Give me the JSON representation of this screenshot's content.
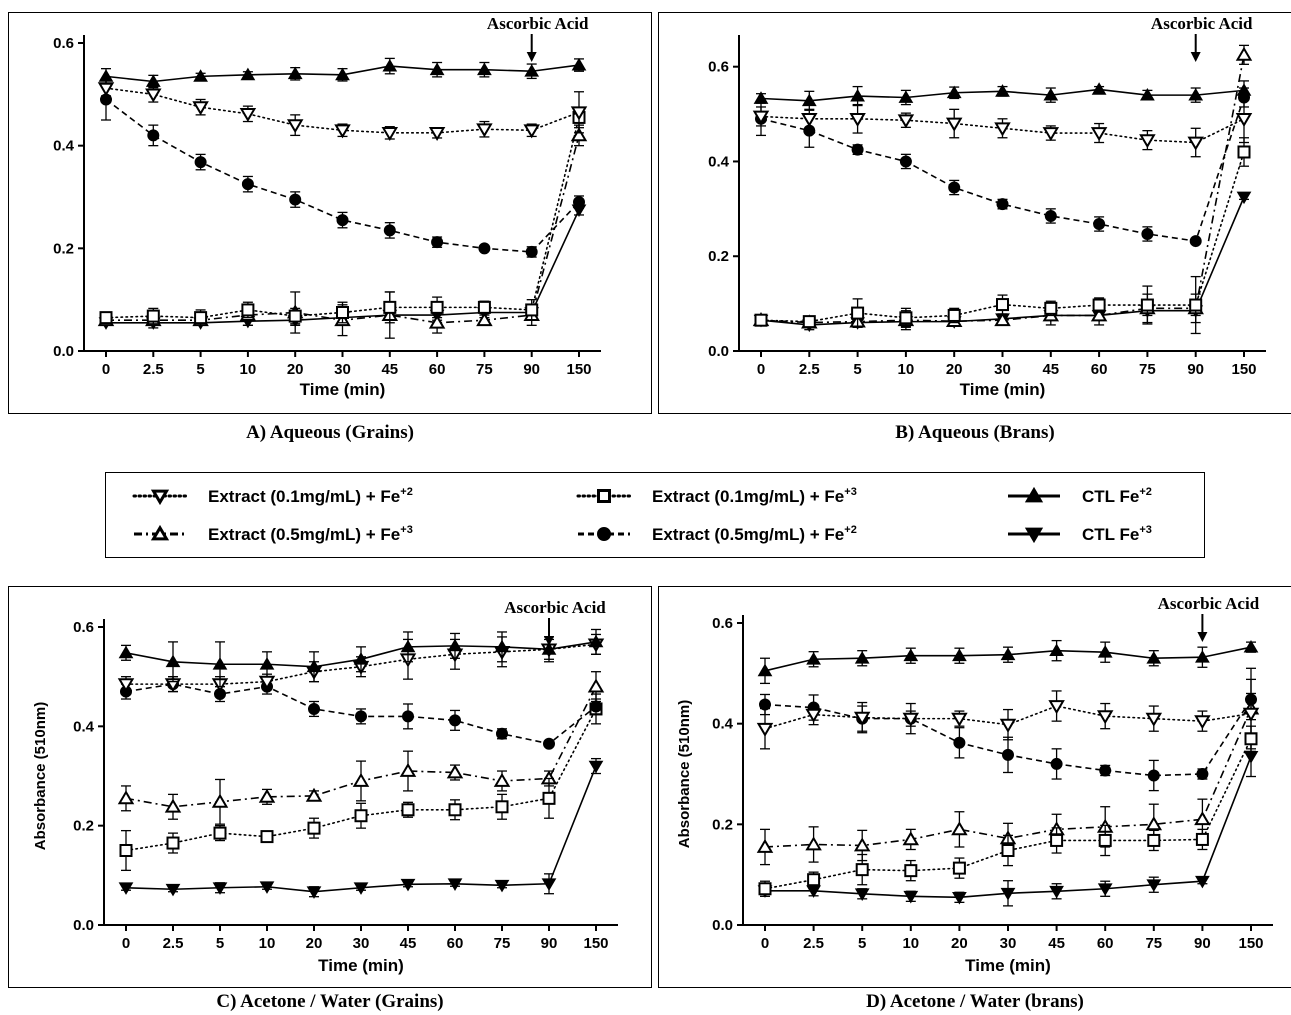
{
  "figure_text": {
    "arrow_label": "Ascorbic Acid",
    "x_axis_title": "Time (min)",
    "y_axis_title": "Absorbance (510nm)"
  },
  "legend": [
    {
      "key": "ext01_fe2",
      "text": "Extract (0.1mg/mL) + Fe",
      "sup": "+2",
      "symbol": "triangle-down-open",
      "line": "dotted"
    },
    {
      "key": "ext01_fe3",
      "text": "Extract (0.1mg/mL) + Fe",
      "sup": "+3",
      "symbol": "square-open",
      "line": "dotted"
    },
    {
      "key": "ctl_fe2",
      "text": "CTL Fe",
      "sup": "+2",
      "symbol": "triangle-up-filled",
      "line": "solid"
    },
    {
      "key": "ext05_fe3",
      "text": "Extract (0.5mg/mL) + Fe",
      "sup": "+3",
      "symbol": "triangle-up-open",
      "line": "dash-dot"
    },
    {
      "key": "ext05_fe2",
      "text": "Extract (0.5mg/mL) + Fe",
      "sup": "+2",
      "symbol": "circle-filled",
      "line": "dashed"
    },
    {
      "key": "ctl_fe3",
      "text": "CTL Fe",
      "sup": "+3",
      "symbol": "triangle-down-filled",
      "line": "solid"
    }
  ],
  "chart_data": [
    {
      "type": "line",
      "caption": "A) Aqueous (Grains)",
      "xlabel": "Time (min)",
      "ylabel": "",
      "categories": [
        "0",
        "2.5",
        "5",
        "10",
        "20",
        "30",
        "45",
        "60",
        "75",
        "90",
        "150"
      ],
      "ylim": [
        0,
        0.6
      ],
      "yticks": [
        "0.0",
        "0.2",
        "0.4",
        "0.6"
      ],
      "annotation": {
        "text": "Ascorbic Acid",
        "at_category": "90"
      },
      "series": [
        {
          "key": "ctl_fe2",
          "values": [
            0.535,
            0.525,
            0.535,
            0.538,
            0.54,
            0.538,
            0.555,
            0.548,
            0.548,
            0.545,
            0.557
          ],
          "errors": [
            0.015,
            0.012,
            0.006,
            0.006,
            0.012,
            0.012,
            0.015,
            0.014,
            0.014,
            0.014,
            0.012
          ]
        },
        {
          "key": "ext01_fe2",
          "values": [
            0.512,
            0.5,
            0.475,
            0.462,
            0.44,
            0.43,
            0.425,
            0.425,
            0.432,
            0.43,
            0.465
          ],
          "errors": [
            0.015,
            0.015,
            0.015,
            0.015,
            0.02,
            0.012,
            0.012,
            0.01,
            0.015,
            0.012,
            0.04
          ]
        },
        {
          "key": "ext05_fe2",
          "values": [
            0.49,
            0.42,
            0.368,
            0.325,
            0.295,
            0.255,
            0.235,
            0.212,
            0.2,
            0.193,
            0.29
          ],
          "errors": [
            0.04,
            0.02,
            0.015,
            0.015,
            0.015,
            0.015,
            0.015,
            0.01,
            0.005,
            0.01,
            0.012
          ]
        },
        {
          "key": "ext01_fe3",
          "values": [
            0.065,
            0.068,
            0.065,
            0.08,
            0.068,
            0.075,
            0.085,
            0.085,
            0.085,
            0.08,
            0.455
          ],
          "errors": [
            0.01,
            0.015,
            0.015,
            0.015,
            0.015,
            0.02,
            0.03,
            0.02,
            0.012,
            0.02,
            0.02
          ]
        },
        {
          "key": "ext05_fe3",
          "values": [
            0.06,
            0.06,
            0.06,
            0.07,
            0.075,
            0.06,
            0.07,
            0.055,
            0.06,
            0.07,
            0.42
          ],
          "errors": [
            0.01,
            0.015,
            0.01,
            0.02,
            0.04,
            0.03,
            0.045,
            0.02,
            0.01,
            0.02,
            0.02
          ]
        },
        {
          "key": "ctl_fe3",
          "values": [
            0.055,
            0.055,
            0.055,
            0.058,
            0.06,
            0.065,
            0.07,
            0.07,
            0.075,
            0.075,
            0.275
          ],
          "errors": [
            0.005,
            0.005,
            0.005,
            0.008,
            0.01,
            0.01,
            0.01,
            0.01,
            0.01,
            0.01,
            0.01
          ]
        }
      ]
    },
    {
      "type": "line",
      "caption": "B) Aqueous (Brans)",
      "xlabel": "Time (min)",
      "ylabel": "",
      "categories": [
        "0",
        "2.5",
        "5",
        "10",
        "20",
        "30",
        "45",
        "60",
        "75",
        "90",
        "150"
      ],
      "ylim": [
        0,
        0.65
      ],
      "yticks": [
        "0.0",
        "0.2",
        "0.4",
        "0.6"
      ],
      "annotation": {
        "text": "Ascorbic Acid",
        "at_category": "90"
      },
      "series": [
        {
          "key": "ctl_fe2",
          "values": [
            0.533,
            0.528,
            0.538,
            0.535,
            0.545,
            0.548,
            0.54,
            0.552,
            0.54,
            0.54,
            0.55
          ],
          "errors": [
            0.01,
            0.02,
            0.02,
            0.015,
            0.012,
            0.01,
            0.015,
            0.006,
            0.01,
            0.015,
            0.02
          ]
        },
        {
          "key": "ext01_fe2",
          "values": [
            0.495,
            0.49,
            0.49,
            0.487,
            0.48,
            0.47,
            0.46,
            0.46,
            0.445,
            0.44,
            0.49
          ],
          "errors": [
            0.02,
            0.02,
            0.03,
            0.015,
            0.03,
            0.02,
            0.015,
            0.02,
            0.02,
            0.03,
            0.05
          ]
        },
        {
          "key": "ext05_fe2",
          "values": [
            0.49,
            0.465,
            0.425,
            0.4,
            0.345,
            0.31,
            0.285,
            0.268,
            0.247,
            0.232,
            0.535
          ],
          "errors": [
            0.035,
            0.035,
            0.01,
            0.015,
            0.015,
            0.01,
            0.015,
            0.015,
            0.015,
            0.005,
            0.02
          ]
        },
        {
          "key": "ext01_fe3",
          "values": [
            0.065,
            0.062,
            0.08,
            0.07,
            0.075,
            0.098,
            0.09,
            0.097,
            0.097,
            0.097,
            0.42
          ],
          "errors": [
            0.01,
            0.01,
            0.03,
            0.02,
            0.015,
            0.02,
            0.015,
            0.015,
            0.04,
            0.06,
            0.03
          ]
        },
        {
          "key": "ext05_fe3",
          "values": [
            0.065,
            0.06,
            0.062,
            0.065,
            0.063,
            0.065,
            0.075,
            0.075,
            0.09,
            0.09,
            0.625
          ],
          "errors": [
            0.01,
            0.01,
            0.01,
            0.02,
            0.01,
            0.01,
            0.02,
            0.02,
            0.03,
            0.03,
            0.02
          ]
        },
        {
          "key": "ctl_fe3",
          "values": [
            0.065,
            0.055,
            0.06,
            0.062,
            0.062,
            0.068,
            0.075,
            0.075,
            0.085,
            0.085,
            0.325
          ],
          "errors": [
            0.01,
            0.01,
            0.01,
            0.01,
            0.01,
            0.01,
            0.01,
            0.01,
            0.01,
            0.01,
            0.005
          ]
        }
      ]
    },
    {
      "type": "line",
      "caption": "C) Acetone / Water (Grains)",
      "xlabel": "Time (min)",
      "ylabel": "Absorbance (510nm)",
      "categories": [
        "0",
        "2.5",
        "5",
        "10",
        "20",
        "30",
        "45",
        "60",
        "75",
        "90",
        "150"
      ],
      "ylim": [
        0,
        0.6
      ],
      "yticks": [
        "0.0",
        "0.2",
        "0.4",
        "0.6"
      ],
      "annotation": {
        "text": "Ascorbic Acid",
        "at_category": "90"
      },
      "series": [
        {
          "key": "ctl_fe2",
          "values": [
            0.548,
            0.53,
            0.525,
            0.525,
            0.52,
            0.535,
            0.56,
            0.562,
            0.56,
            0.555,
            0.57
          ],
          "errors": [
            0.015,
            0.04,
            0.045,
            0.025,
            0.03,
            0.025,
            0.03,
            0.025,
            0.03,
            0.025,
            0.025
          ]
        },
        {
          "key": "ext01_fe2",
          "values": [
            0.485,
            0.485,
            0.485,
            0.49,
            0.51,
            0.52,
            0.535,
            0.545,
            0.55,
            0.555,
            0.565
          ],
          "errors": [
            0.015,
            0.015,
            0.015,
            0.015,
            0.02,
            0.02,
            0.04,
            0.03,
            0.03,
            0.02,
            0.02
          ]
        },
        {
          "key": "ext05_fe2",
          "values": [
            0.47,
            0.485,
            0.465,
            0.48,
            0.435,
            0.42,
            0.42,
            0.412,
            0.385,
            0.365,
            0.44
          ],
          "errors": [
            0.015,
            0.015,
            0.015,
            0.015,
            0.015,
            0.015,
            0.025,
            0.02,
            0.01,
            0.005,
            0.015
          ]
        },
        {
          "key": "ext05_fe3",
          "values": [
            0.255,
            0.238,
            0.248,
            0.258,
            0.26,
            0.29,
            0.31,
            0.307,
            0.29,
            0.295,
            0.48
          ],
          "errors": [
            0.025,
            0.025,
            0.045,
            0.015,
            0.01,
            0.04,
            0.04,
            0.015,
            0.02,
            0.015,
            0.03
          ]
        },
        {
          "key": "ext01_fe3",
          "values": [
            0.15,
            0.165,
            0.185,
            0.178,
            0.195,
            0.22,
            0.232,
            0.232,
            0.238,
            0.255,
            0.435
          ],
          "errors": [
            0.04,
            0.02,
            0.015,
            0.01,
            0.02,
            0.025,
            0.015,
            0.02,
            0.025,
            0.04,
            0.03
          ]
        },
        {
          "key": "ctl_fe3",
          "values": [
            0.075,
            0.072,
            0.075,
            0.077,
            0.067,
            0.075,
            0.082,
            0.083,
            0.08,
            0.083,
            0.32
          ],
          "errors": [
            0.005,
            0.005,
            0.01,
            0.005,
            0.01,
            0.005,
            0.005,
            0.005,
            0.005,
            0.02,
            0.015
          ]
        }
      ]
    },
    {
      "type": "line",
      "caption": "D) Acetone / Water (brans)",
      "xlabel": "Time (min)",
      "ylabel": "Absorbance (510nm)",
      "categories": [
        "0",
        "2.5",
        "5",
        "10",
        "20",
        "30",
        "45",
        "60",
        "75",
        "90",
        "150"
      ],
      "ylim": [
        0,
        0.6
      ],
      "yticks": [
        "0.0",
        "0.2",
        "0.4",
        "0.6"
      ],
      "annotation": {
        "text": "Ascorbic Acid",
        "at_category": "90"
      },
      "series": [
        {
          "key": "ctl_fe2",
          "values": [
            0.505,
            0.528,
            0.53,
            0.535,
            0.535,
            0.537,
            0.545,
            0.542,
            0.53,
            0.532,
            0.552
          ],
          "errors": [
            0.025,
            0.015,
            0.015,
            0.015,
            0.015,
            0.015,
            0.02,
            0.02,
            0.015,
            0.02,
            0.01
          ]
        },
        {
          "key": "ext01_fe2",
          "values": [
            0.39,
            0.418,
            0.412,
            0.41,
            0.41,
            0.398,
            0.435,
            0.415,
            0.41,
            0.405,
            0.42
          ],
          "errors": [
            0.04,
            0.02,
            0.03,
            0.03,
            0.015,
            0.03,
            0.03,
            0.025,
            0.025,
            0.02,
            0.04
          ]
        },
        {
          "key": "ext05_fe2",
          "values": [
            0.438,
            0.432,
            0.41,
            0.41,
            0.362,
            0.338,
            0.32,
            0.307,
            0.297,
            0.3,
            0.448
          ],
          "errors": [
            0.02,
            0.025,
            0.025,
            0.015,
            0.03,
            0.035,
            0.03,
            0.01,
            0.03,
            0.01,
            0.04
          ]
        },
        {
          "key": "ext05_fe3",
          "values": [
            0.155,
            0.16,
            0.158,
            0.17,
            0.19,
            0.172,
            0.19,
            0.195,
            0.2,
            0.21,
            0.43
          ],
          "errors": [
            0.035,
            0.035,
            0.03,
            0.02,
            0.035,
            0.03,
            0.03,
            0.04,
            0.04,
            0.04,
            0.08
          ]
        },
        {
          "key": "ext01_fe3",
          "values": [
            0.072,
            0.09,
            0.11,
            0.108,
            0.113,
            0.148,
            0.168,
            0.168,
            0.168,
            0.17,
            0.37
          ],
          "errors": [
            0.015,
            0.015,
            0.03,
            0.02,
            0.02,
            0.03,
            0.025,
            0.03,
            0.02,
            0.02,
            0.025
          ]
        },
        {
          "key": "ctl_fe3",
          "values": [
            0.068,
            0.068,
            0.062,
            0.057,
            0.055,
            0.063,
            0.067,
            0.072,
            0.08,
            0.087,
            0.335
          ],
          "errors": [
            0.005,
            0.01,
            0.01,
            0.01,
            0.01,
            0.025,
            0.015,
            0.015,
            0.015,
            0.005,
            0.04
          ]
        }
      ]
    }
  ]
}
